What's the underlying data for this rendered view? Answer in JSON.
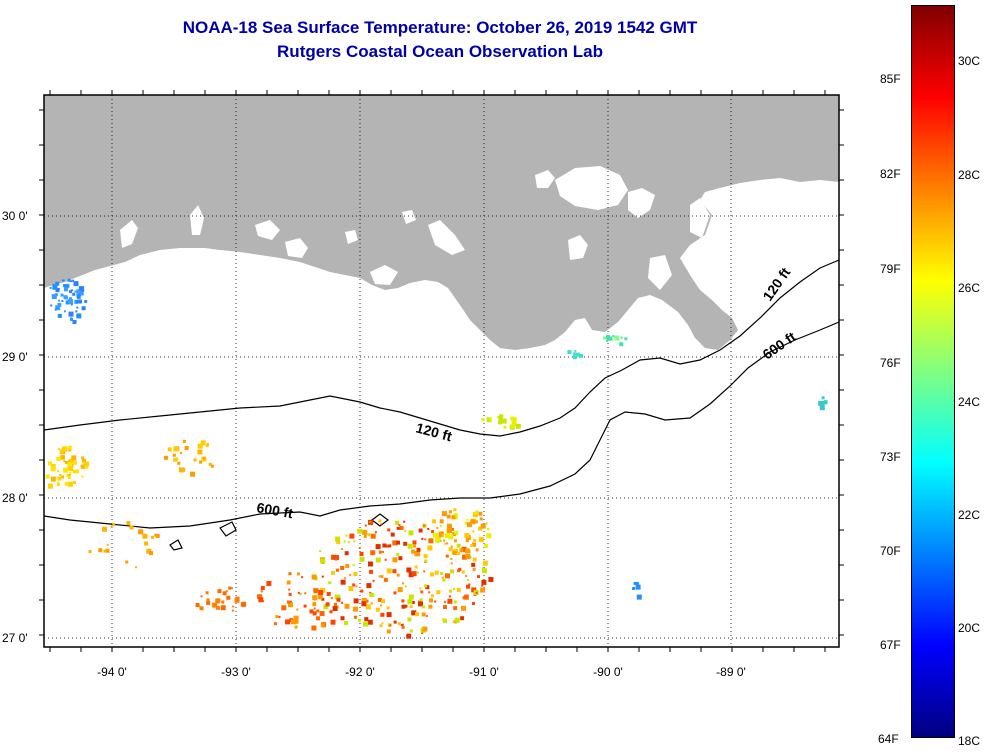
{
  "header": {
    "title": "NOAA-18 Sea Surface Temperature:  October 26, 2019 1542 GMT",
    "subtitle": "Rutgers Coastal Ocean Observation Lab"
  },
  "axes": {
    "lon_labels": [
      "-94 0'",
      "-93 0'",
      "-92 0'",
      "-91 0'",
      "-90 0'",
      "-89 0'"
    ],
    "lat_labels": [
      "30 0'",
      "29 0'",
      "28 0'",
      "27 0'"
    ],
    "lon_range": [
      -94.55,
      -88.15
    ],
    "lat_range": [
      26.95,
      30.85
    ],
    "grid": "dotted"
  },
  "contours": [
    {
      "label": "120 ft",
      "color": "#000000"
    },
    {
      "label": "600 ft",
      "color": "#000000"
    }
  ],
  "colorbar": {
    "min_c": 18,
    "max_c": 31,
    "f_labels": [
      "85F",
      "82F",
      "79F",
      "76F",
      "73F",
      "70F",
      "67F",
      "64F"
    ],
    "c_labels": [
      "30C",
      "28C",
      "26C",
      "24C",
      "22C",
      "20C",
      "18C"
    ],
    "colors": [
      "#000080",
      "#0000ff",
      "#0080ff",
      "#00ffff",
      "#80ff80",
      "#ffff00",
      "#ff8000",
      "#ff0000",
      "#800000"
    ]
  },
  "colors": {
    "land": "#b4b4b4",
    "ocean_nodata": "#ffffff",
    "title": "#0000a8"
  }
}
